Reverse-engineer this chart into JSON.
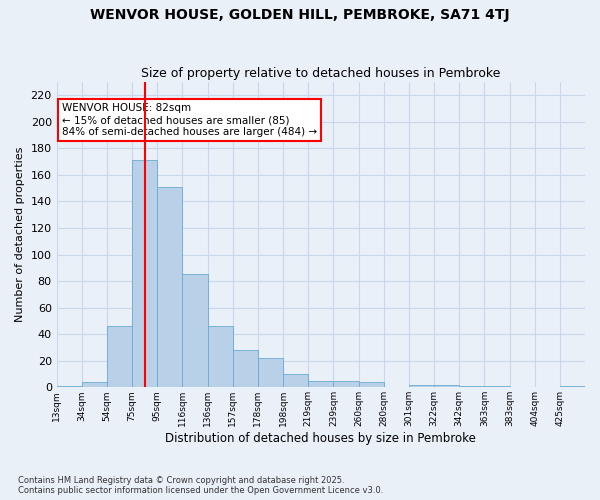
{
  "title": "WENVOR HOUSE, GOLDEN HILL, PEMBROKE, SA71 4TJ",
  "subtitle": "Size of property relative to detached houses in Pembroke",
  "xlabel": "Distribution of detached houses by size in Pembroke",
  "ylabel": "Number of detached properties",
  "footnote": "Contains HM Land Registry data © Crown copyright and database right 2025.\nContains public sector information licensed under the Open Government Licence v3.0.",
  "bin_labels": [
    "13sqm",
    "34sqm",
    "54sqm",
    "75sqm",
    "95sqm",
    "116sqm",
    "136sqm",
    "157sqm",
    "178sqm",
    "198sqm",
    "219sqm",
    "239sqm",
    "260sqm",
    "280sqm",
    "301sqm",
    "322sqm",
    "342sqm",
    "363sqm",
    "383sqm",
    "404sqm",
    "425sqm"
  ],
  "values": [
    1,
    4,
    46,
    171,
    151,
    85,
    46,
    28,
    22,
    10,
    5,
    5,
    4,
    0,
    2,
    2,
    1,
    1,
    0,
    0,
    1
  ],
  "bar_color": "#b8d0e8",
  "bar_edge_color": "#6aaad4",
  "grid_color": "#c8d8ea",
  "bg_color": "#eaf0f8",
  "property_bin_index": 3.5,
  "annotation_text": "WENVOR HOUSE: 82sqm\n← 15% of detached houses are smaller (85)\n84% of semi-detached houses are larger (484) →",
  "annotation_box_color": "white",
  "annotation_box_edge_color": "red",
  "red_line_color": "red",
  "ylim": [
    0,
    230
  ],
  "yticks": [
    0,
    20,
    40,
    60,
    80,
    100,
    120,
    140,
    160,
    180,
    200,
    220
  ],
  "title_fontsize": 10,
  "subtitle_fontsize": 9,
  "ylabel_fontsize": 8,
  "xlabel_fontsize": 8.5
}
